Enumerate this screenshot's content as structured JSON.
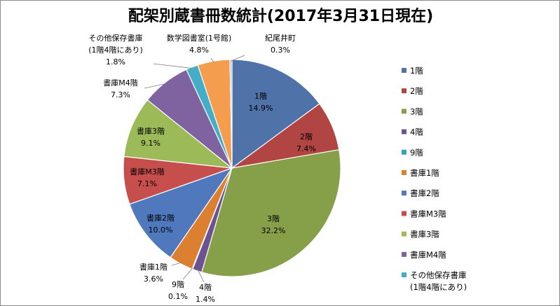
{
  "chart_data": {
    "type": "pie",
    "title": "配架別蔵書冊数統計(2017年3月31日現在)",
    "slices": [
      {
        "label": "1階",
        "label_lines": [
          "1階"
        ],
        "value": 14.9,
        "pct_text": "14.9%",
        "color": "#4f72a8"
      },
      {
        "label": "2階",
        "label_lines": [
          "2階"
        ],
        "value": 7.4,
        "pct_text": "7.4%",
        "color": "#b14543"
      },
      {
        "label": "3階",
        "label_lines": [
          "3階"
        ],
        "value": 32.2,
        "pct_text": "32.2%",
        "color": "#86a04a"
      },
      {
        "label": "4階",
        "label_lines": [
          "4階"
        ],
        "value": 1.4,
        "pct_text": "1.4%",
        "color": "#6c5290"
      },
      {
        "label": "9階",
        "label_lines": [
          "9階"
        ],
        "value": 0.1,
        "pct_text": "0.1%",
        "color": "#38a0b8"
      },
      {
        "label": "書庫1階",
        "label_lines": [
          "書庫1階"
        ],
        "value": 3.6,
        "pct_text": "3.6%",
        "color": "#dd7f31"
      },
      {
        "label": "書庫2階",
        "label_lines": [
          "書庫2階"
        ],
        "value": 10.0,
        "pct_text": "10.0%",
        "color": "#4f79bc"
      },
      {
        "label": "書庫M3階",
        "label_lines": [
          "書庫M3階"
        ],
        "value": 7.1,
        "pct_text": "7.1%",
        "color": "#c64e4d"
      },
      {
        "label": "書庫3階",
        "label_lines": [
          "書庫3階"
        ],
        "value": 9.1,
        "pct_text": "9.1%",
        "color": "#9cbb58"
      },
      {
        "label": "書庫M4階",
        "label_lines": [
          "書庫M4階"
        ],
        "value": 7.3,
        "pct_text": "7.3%",
        "color": "#7f62a0"
      },
      {
        "label": "その他保存書庫(1階4階にあり)",
        "label_lines": [
          "その他保存書庫",
          "(1階4階にあり)"
        ],
        "value": 1.8,
        "pct_text": "1.8%",
        "color": "#44adc8"
      },
      {
        "label": "数学図書室(1号館)",
        "label_lines": [
          "数学図書室(1号館)"
        ],
        "value": 4.8,
        "pct_text": "4.8%",
        "color": "#f59d4f"
      },
      {
        "label": "紀尾井町",
        "label_lines": [
          "紀尾井町"
        ],
        "value": 0.3,
        "pct_text": "0.3%",
        "color": "#a9bcd8"
      }
    ],
    "legend": {
      "position": "right",
      "entries": [
        {
          "lines": [
            "1階"
          ],
          "color": "#4f72a8"
        },
        {
          "lines": [
            "2階"
          ],
          "color": "#b14543"
        },
        {
          "lines": [
            "3階"
          ],
          "color": "#86a04a"
        },
        {
          "lines": [
            "4階"
          ],
          "color": "#6c5290"
        },
        {
          "lines": [
            "9階"
          ],
          "color": "#38a0b8"
        },
        {
          "lines": [
            "書庫1階"
          ],
          "color": "#dd7f31"
        },
        {
          "lines": [
            "書庫2階"
          ],
          "color": "#4f79bc"
        },
        {
          "lines": [
            "書庫M3階"
          ],
          "color": "#c64e4d"
        },
        {
          "lines": [
            "書庫3階"
          ],
          "color": "#9cbb58"
        },
        {
          "lines": [
            "書庫M4階"
          ],
          "color": "#7f62a0"
        },
        {
          "lines": [
            "その他保存書庫",
            "(1階4階にあり)"
          ],
          "color": "#44adc8"
        }
      ]
    }
  }
}
